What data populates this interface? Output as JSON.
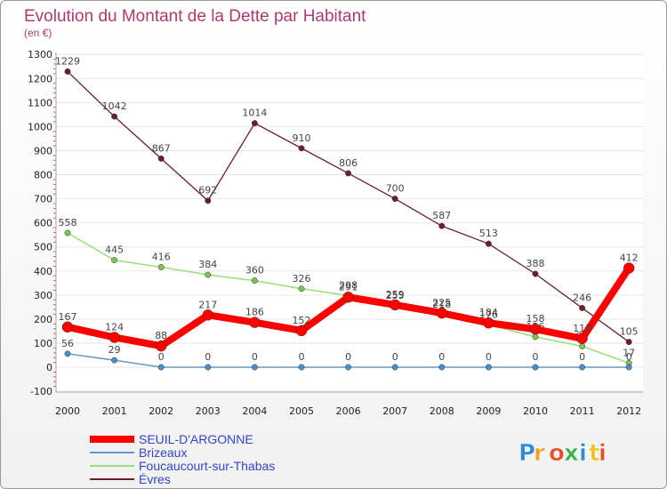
{
  "chart_data": {
    "type": "line",
    "title": "Evolution du Montant de la Dette par Habitant",
    "unit_label": "(en €)",
    "xlabel": "",
    "ylabel": "",
    "ylim": [
      -100,
      1300
    ],
    "y_ticks": [
      "-100",
      "0",
      "100",
      "200",
      "300",
      "400",
      "500",
      "600",
      "700",
      "800",
      "900",
      "1000",
      "1100",
      "1200",
      "1300"
    ],
    "y_tick_values": [
      -100,
      0,
      100,
      200,
      300,
      400,
      500,
      600,
      700,
      800,
      900,
      1000,
      1100,
      1200,
      1300
    ],
    "categories": [
      "2000",
      "2001",
      "2002",
      "2003",
      "2004",
      "2005",
      "2006",
      "2007",
      "2008",
      "2009",
      "2010",
      "2011",
      "2012"
    ],
    "legend_position": "bottom-left",
    "series": [
      {
        "name": "Évres",
        "color": "#6b1f2a",
        "marker": "#6b1f2a",
        "values": [
          1229,
          1042,
          867,
          692,
          1014,
          910,
          806,
          700,
          587,
          513,
          388,
          246,
          105
        ],
        "labels": [
          "1229",
          "1042",
          "867",
          "692",
          "1014",
          "910",
          "806",
          "700",
          "587",
          "513",
          "388",
          "246",
          "105"
        ]
      },
      {
        "name": "Foucaucourt-sur-Thabas",
        "color": "#99dd77",
        "marker": "#7cc450",
        "values": [
          558,
          445,
          416,
          384,
          360,
          326,
          298,
          255,
          218,
          176,
          126,
          87,
          17
        ],
        "labels": [
          "558",
          "445",
          "416",
          "384",
          "360",
          "326",
          "298",
          "255",
          "218",
          "176",
          "126",
          "87",
          "17"
        ]
      },
      {
        "name": "Brizeaux",
        "color": "#6699cc",
        "marker": "#4a90c8",
        "values": [
          56,
          29,
          0,
          0,
          0,
          0,
          0,
          0,
          0,
          0,
          0,
          0,
          0
        ],
        "labels": [
          "56",
          "29",
          "0",
          "0",
          "0",
          "0",
          "0",
          "0",
          "0",
          "0",
          "0",
          "0",
          "0"
        ]
      },
      {
        "name": "SEUIL-D'ARGONNE",
        "color": "#ff0000",
        "marker": "#ff0000",
        "values": [
          167,
          124,
          88,
          217,
          186,
          152,
          291,
          259,
          225,
          184,
          158,
          119,
          412
        ],
        "labels": [
          "167",
          "124",
          "88",
          "217",
          "186",
          "152",
          "291",
          "259",
          "225",
          "184",
          "158",
          "119",
          "412"
        ]
      }
    ],
    "legend": [
      "SEUIL-D'ARGONNE",
      "Brizeaux",
      "Foucaucourt-sur-Thabas",
      "Évres"
    ]
  },
  "logo": {
    "letters": [
      "P",
      "r",
      "o",
      "x",
      "i",
      "t",
      "i"
    ],
    "colors": [
      "#2e8bd6",
      "#f0a020",
      "#e8502a",
      "#3db04a",
      "#2e8bd6",
      "#f0c020",
      "#e8502a"
    ]
  }
}
